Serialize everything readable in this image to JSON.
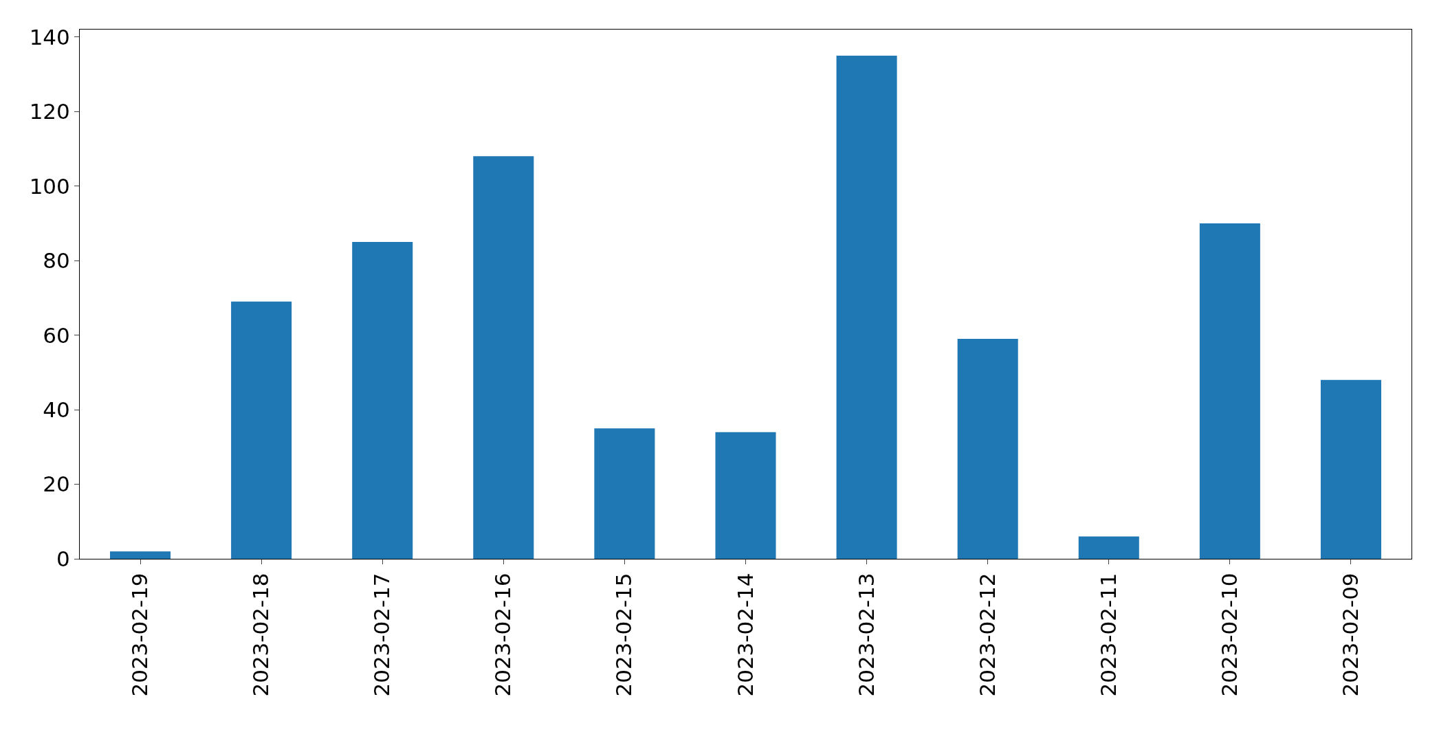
{
  "chart_data": {
    "type": "bar",
    "categories": [
      "2023-02-19",
      "2023-02-18",
      "2023-02-17",
      "2023-02-16",
      "2023-02-15",
      "2023-02-14",
      "2023-02-13",
      "2023-02-12",
      "2023-02-11",
      "2023-02-10",
      "2023-02-09"
    ],
    "values": [
      2,
      69,
      85,
      108,
      35,
      34,
      135,
      59,
      6,
      90,
      48
    ],
    "color": "#1f77b4",
    "ylim": [
      0,
      142
    ],
    "yticks": [
      0,
      20,
      40,
      60,
      80,
      100,
      120,
      140
    ]
  }
}
